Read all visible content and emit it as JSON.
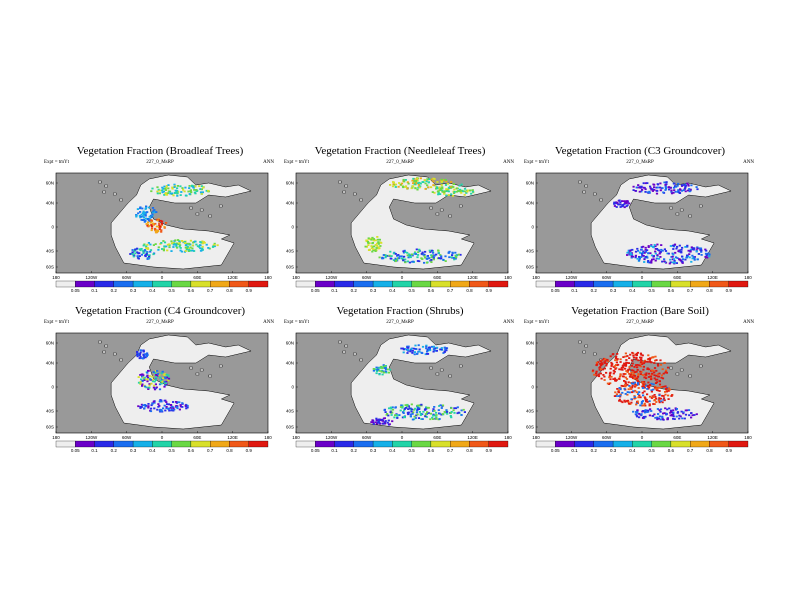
{
  "colors": {
    "ocean": "#999999",
    "land_background": "#eeeeee",
    "scale": [
      "#eeeeee",
      "#6a00c8",
      "#2a2ae8",
      "#1a6ef0",
      "#16b0e8",
      "#22d4a8",
      "#6ad844",
      "#d8e02a",
      "#f0a818",
      "#f05818",
      "#e01810"
    ]
  },
  "chart_data": [
    {
      "type": "heatmap",
      "title": "Vegetation Fraction (Broadleaf Trees)",
      "expt": "Expt = tmYt",
      "run": "227_0_MsRP",
      "period": "ANN",
      "x_ticks": [
        "180",
        "120W",
        "60W",
        "0",
        "60E",
        "120E",
        "180"
      ],
      "y_ticks": [
        "60N",
        "40N",
        "0",
        "40S",
        "60S"
      ],
      "colorbar": [
        "0.05",
        "0.1",
        "0.2",
        "0.3",
        "0.4",
        "0.5",
        "0.6",
        "0.7",
        "0.8",
        "0.9"
      ]
    },
    {
      "type": "heatmap",
      "title": "Vegetation Fraction (Needleleaf Trees)",
      "expt": "Expt = tmYt",
      "run": "227_0_MsRP",
      "period": "ANN",
      "x_ticks": [
        "180",
        "120W",
        "60W",
        "0",
        "60E",
        "120E",
        "180"
      ],
      "y_ticks": [
        "60N",
        "40N",
        "0",
        "40S",
        "60S"
      ],
      "colorbar": [
        "0.05",
        "0.1",
        "0.2",
        "0.3",
        "0.4",
        "0.5",
        "0.6",
        "0.7",
        "0.8",
        "0.9"
      ]
    },
    {
      "type": "heatmap",
      "title": "Vegetation Fraction (C3 Groundcover)",
      "expt": "Expt = tmYt",
      "run": "227_0_MsRP",
      "period": "ANN",
      "x_ticks": [
        "180",
        "120W",
        "60W",
        "0",
        "60E",
        "120E",
        "180"
      ],
      "y_ticks": [
        "60N",
        "40N",
        "0",
        "40S",
        "60S"
      ],
      "colorbar": [
        "0.05",
        "0.1",
        "0.2",
        "0.3",
        "0.4",
        "0.5",
        "0.6",
        "0.7",
        "0.8",
        "0.9"
      ]
    },
    {
      "type": "heatmap",
      "title": "Vegetation Fraction (C4 Groundcover)",
      "expt": "Expt = tmYt",
      "run": "227_0_MsRP",
      "period": "ANN",
      "x_ticks": [
        "180",
        "120W",
        "60W",
        "0",
        "60E",
        "120E",
        "180"
      ],
      "y_ticks": [
        "60N",
        "40N",
        "0",
        "40S",
        "60S"
      ],
      "colorbar": [
        "0.05",
        "0.1",
        "0.2",
        "0.3",
        "0.4",
        "0.5",
        "0.6",
        "0.7",
        "0.8",
        "0.9"
      ]
    },
    {
      "type": "heatmap",
      "title": "Vegetation Fraction (Shrubs)",
      "expt": "Expt = tmYt",
      "run": "227_0_MsRP",
      "period": "ANN",
      "x_ticks": [
        "180",
        "120W",
        "60W",
        "0",
        "60E",
        "120E",
        "180"
      ],
      "y_ticks": [
        "60N",
        "40N",
        "0",
        "40S",
        "60S"
      ],
      "colorbar": [
        "0.05",
        "0.1",
        "0.2",
        "0.3",
        "0.4",
        "0.5",
        "0.6",
        "0.7",
        "0.8",
        "0.9"
      ]
    },
    {
      "type": "heatmap",
      "title": "Vegetation Fraction (Bare Soil)",
      "expt": "Expt = tmYt",
      "run": "227_0_MsRP",
      "period": "ANN",
      "x_ticks": [
        "180",
        "120W",
        "60W",
        "0",
        "60E",
        "120E",
        "180"
      ],
      "y_ticks": [
        "60N",
        "40N",
        "0",
        "40S",
        "60S"
      ],
      "colorbar": [
        "0.05",
        "0.1",
        "0.2",
        "0.3",
        "0.4",
        "0.5",
        "0.6",
        "0.7",
        "0.8",
        "0.9"
      ]
    }
  ]
}
